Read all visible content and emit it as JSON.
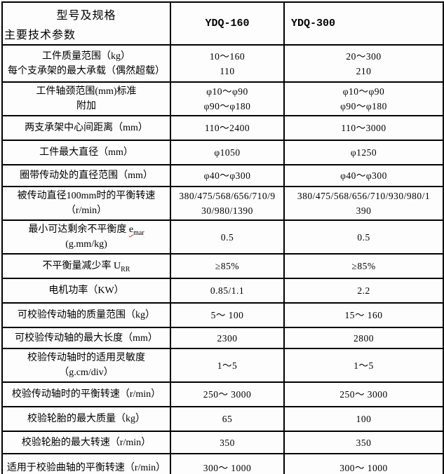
{
  "colors": {
    "background": "#fbfbfb",
    "border": "#000000",
    "spellcheck_underline": "#e03030"
  },
  "header": {
    "corner_top": "型号及规格",
    "corner_bottom": "主要技术参数",
    "model_1": "YDQ-160",
    "model_2": "YDQ-300"
  },
  "rows": [
    {
      "label_lines": [
        [
          {
            "t": "工件质量范围（kg）"
          }
        ],
        [
          {
            "t": "每个支承架的最大承载（偶然超载）"
          }
        ]
      ],
      "values": [
        [
          "10～160",
          "110"
        ],
        [
          "20～300",
          "210"
        ]
      ]
    },
    {
      "label_lines": [
        [
          {
            "t": "工件轴颈范围(mm)标准"
          }
        ],
        [
          {
            "t": "附加"
          }
        ]
      ],
      "values": [
        [
          "φ10～φ90",
          "φ90～φ180"
        ],
        [
          "φ10～φ90",
          "φ90～φ180"
        ]
      ]
    },
    {
      "label_lines": [
        [
          {
            "t": "两支承架中心间距离（mm）"
          }
        ]
      ],
      "values": [
        [
          "110～2400"
        ],
        [
          "110～3000"
        ]
      ]
    },
    {
      "label_lines": [
        [
          {
            "t": "工件最大直径（mm）"
          }
        ]
      ],
      "values": [
        [
          "φ1050"
        ],
        [
          "φ1250"
        ]
      ]
    },
    {
      "label_lines": [
        [
          {
            "t": "圈带传动处的直径范围（mm）"
          }
        ]
      ],
      "values": [
        [
          "φ40～φ300"
        ],
        [
          "φ40～φ300"
        ]
      ]
    },
    {
      "label_lines": [
        [
          {
            "t": "被传动直径100mm时的平衡转速"
          }
        ],
        [
          {
            "t": "（r/min）"
          }
        ]
      ],
      "values": [
        [
          "380/475/568/656/710/9",
          "30/980/1390"
        ],
        [
          "380/475/568/656/710/930/980/1",
          "390"
        ]
      ]
    },
    {
      "label_lines": [
        [
          {
            "t": "最小可达剩余不平衡度 "
          },
          {
            "t": "e",
            "wavy": true
          },
          {
            "t": "mar",
            "sub": true,
            "wavy": true
          }
        ],
        [
          {
            "t": "(g.mm/kg)"
          }
        ]
      ],
      "values": [
        [
          "0.5"
        ],
        [
          "0.5"
        ]
      ]
    },
    {
      "label_lines": [
        [
          {
            "t": "不平衡量减少率 U"
          },
          {
            "t": "RR",
            "sub": true
          }
        ]
      ],
      "values": [
        [
          "≥85%"
        ],
        [
          "≥85%"
        ]
      ]
    },
    {
      "label_lines": [
        [
          {
            "t": "电机功率（KW）"
          }
        ]
      ],
      "values": [
        [
          "0.85/1.1"
        ],
        [
          "2.2"
        ]
      ]
    },
    {
      "label_lines": [
        [
          {
            "t": "可校验传动轴的质量范围（kg）"
          }
        ]
      ],
      "values": [
        [
          "5～ 100"
        ],
        [
          "15～ 160"
        ]
      ]
    },
    {
      "label_lines": [
        [
          {
            "t": "可校验传动轴的最大长度（mm）"
          }
        ]
      ],
      "values": [
        [
          "2300"
        ],
        [
          "2800"
        ]
      ]
    },
    {
      "label_lines": [
        [
          {
            "t": "校验传动轴时的适用灵敏度"
          }
        ],
        [
          {
            "t": "（g.cm/div）"
          }
        ]
      ],
      "values": [
        [
          "1～5"
        ],
        [
          "1～5"
        ]
      ]
    },
    {
      "label_lines": [
        [
          {
            "t": "校验传动轴时的平衡转速（r/min）"
          }
        ]
      ],
      "values": [
        [
          "250～ 3000"
        ],
        [
          "250～ 3000"
        ]
      ]
    },
    {
      "label_lines": [
        [
          {
            "t": "校验轮胎的最大质量（kg）"
          }
        ]
      ],
      "values": [
        [
          "65"
        ],
        [
          "100"
        ]
      ]
    },
    {
      "label_lines": [
        [
          {
            "t": "校验轮胎的最大转速（r/min）"
          }
        ]
      ],
      "values": [
        [
          "350"
        ],
        [
          "350"
        ]
      ]
    },
    {
      "label_lines": [
        [
          {
            "t": "适用于校验曲轴的平衡转速（r/min）"
          }
        ]
      ],
      "values": [
        [
          "300～ 1000"
        ],
        [
          "300～ 1000"
        ]
      ]
    }
  ]
}
